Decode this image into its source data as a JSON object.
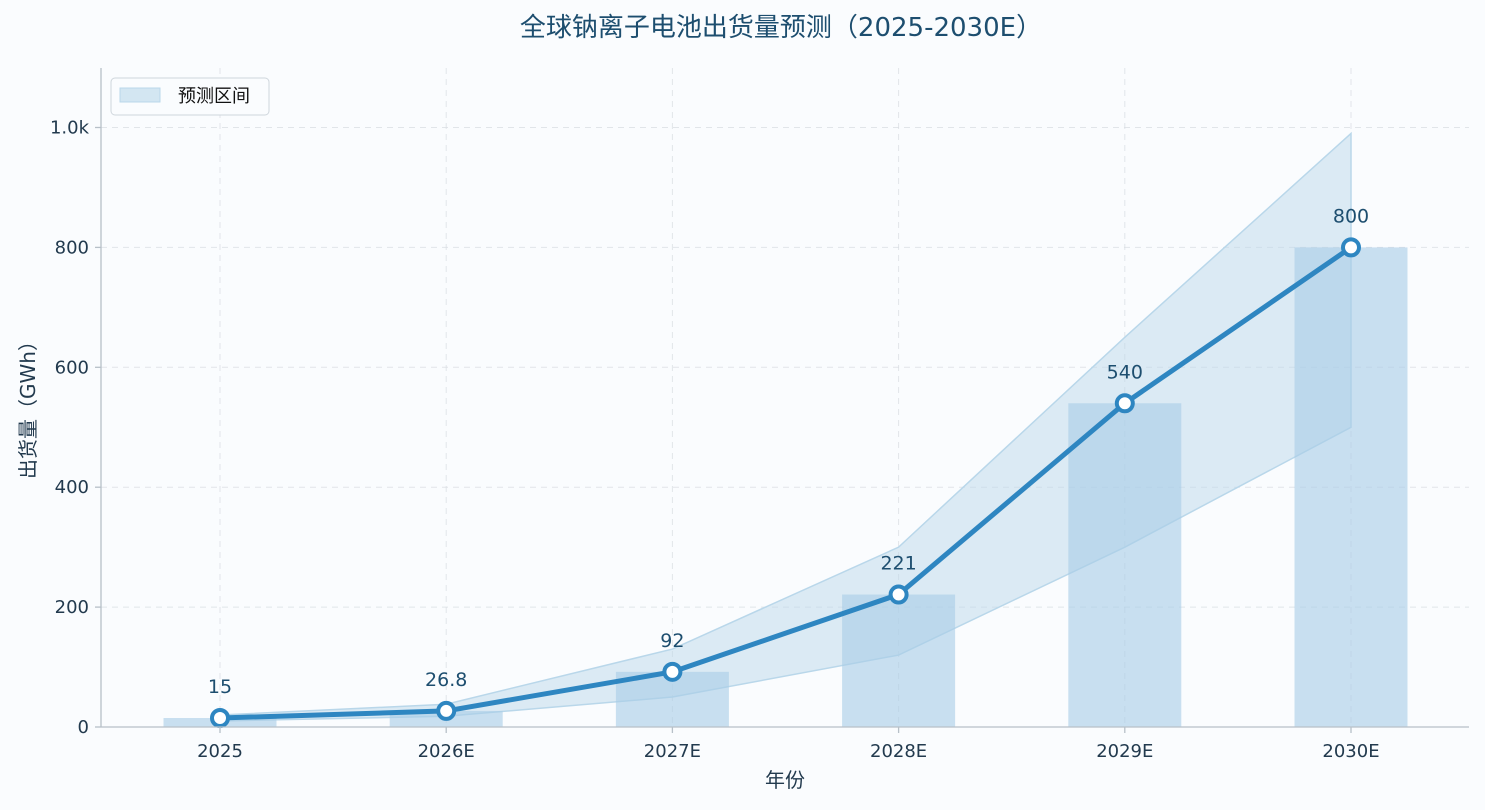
{
  "chart_data": {
    "type": "bar",
    "title": "全球钠离子电池出货量预测（2025-2030E）",
    "xlabel": "年份",
    "ylabel": "出货量（GWh）",
    "categories": [
      "2025",
      "2026E",
      "2027E",
      "2028E",
      "2029E",
      "2030E"
    ],
    "series": [
      {
        "kind": "bar",
        "values": [
          15,
          26.8,
          92,
          221,
          540,
          800
        ],
        "color": "#a9cde6"
      },
      {
        "kind": "line",
        "values": [
          15,
          26.8,
          92,
          221,
          540,
          800
        ],
        "color": "#2e86c1"
      },
      {
        "kind": "band",
        "name": "预测区间",
        "lower": [
          10,
          18,
          50,
          120,
          300,
          500
        ],
        "upper": [
          20,
          38,
          130,
          300,
          650,
          990
        ],
        "color": "#b9d7ea"
      }
    ],
    "data_labels": [
      "15",
      "26.8",
      "92",
      "221",
      "540",
      "800"
    ],
    "ylim": [
      0,
      1100
    ],
    "yticks": [
      0,
      200,
      400,
      600,
      800,
      1000
    ],
    "ytick_labels": [
      "0",
      "200",
      "400",
      "600",
      "800",
      "1.0k"
    ],
    "grid": true,
    "legend": {
      "position": "top-left",
      "entries": [
        "预测区间"
      ]
    }
  }
}
